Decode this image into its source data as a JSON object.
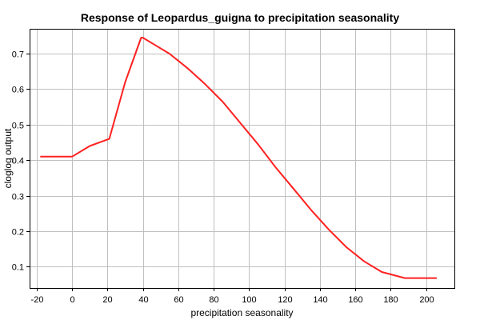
{
  "chart_data": {
    "type": "line",
    "title": "Response of Leopardus_guigna to precipitation seasonality",
    "xlabel": "precipitation seasonality",
    "ylabel": "cloglog output",
    "xlim": [
      -24,
      216
    ],
    "ylim": [
      0.04,
      0.77
    ],
    "x_ticks": [
      -20,
      0,
      20,
      40,
      60,
      80,
      100,
      120,
      140,
      160,
      180,
      200
    ],
    "y_ticks": [
      0.1,
      0.2,
      0.3,
      0.4,
      0.5,
      0.6,
      0.7
    ],
    "grid": true,
    "line_color": "#ff2020",
    "series": [
      {
        "x": [
          -18,
          0,
          10,
          21,
          30,
          39,
          40,
          45,
          55,
          65,
          75,
          85,
          95,
          105,
          115,
          125,
          135,
          145,
          155,
          165,
          175,
          188,
          206
        ],
        "y": [
          0.41,
          0.41,
          0.44,
          0.46,
          0.62,
          0.745,
          0.745,
          0.73,
          0.7,
          0.66,
          0.615,
          0.565,
          0.505,
          0.445,
          0.38,
          0.32,
          0.26,
          0.205,
          0.155,
          0.115,
          0.085,
          0.068,
          0.068
        ]
      }
    ]
  }
}
